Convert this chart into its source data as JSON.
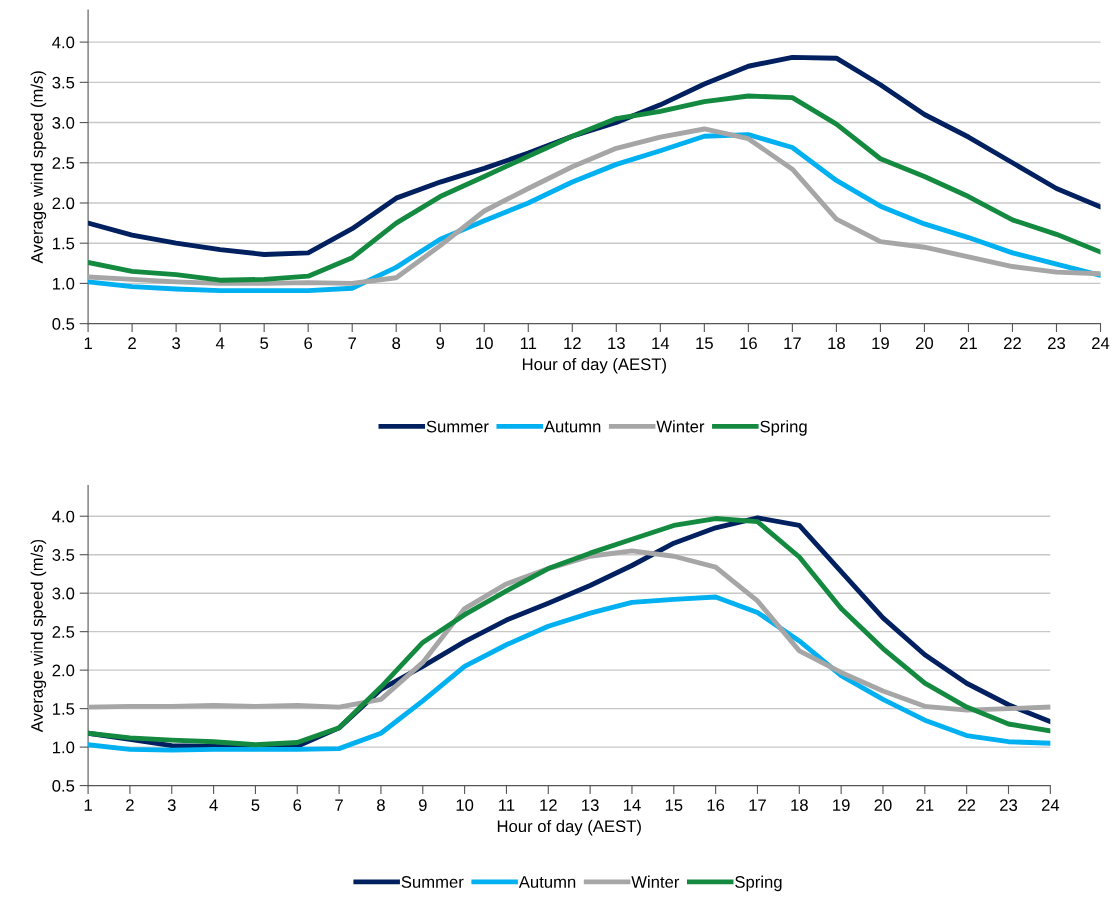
{
  "chart_data": [
    {
      "type": "line",
      "xlabel": "Hour of day (AEST)",
      "ylabel": "Average wind speed (m/s)",
      "x": [
        1,
        2,
        3,
        4,
        5,
        6,
        7,
        8,
        9,
        10,
        11,
        12,
        13,
        14,
        15,
        16,
        17,
        18,
        19,
        20,
        21,
        22,
        23,
        24
      ],
      "xlim": [
        1,
        24
      ],
      "xticks": [
        1,
        2,
        3,
        4,
        5,
        6,
        7,
        8,
        9,
        10,
        11,
        12,
        13,
        14,
        15,
        16,
        17,
        18,
        19,
        20,
        21,
        22,
        23,
        24
      ],
      "ylim": [
        0.5,
        4.4
      ],
      "yticks": [
        {
          "value": 0.5,
          "label": "0.5"
        },
        {
          "value": 1.0,
          "label": "1.0"
        },
        {
          "value": 1.5,
          "label": "1.5"
        },
        {
          "value": 2.0,
          "label": "2.0"
        },
        {
          "value": 2.5,
          "label": "2.5"
        },
        {
          "value": 3.0,
          "label": "3.0"
        },
        {
          "value": 3.5,
          "label": "3.5"
        },
        {
          "value": 4.0,
          "label": "4.0"
        }
      ],
      "grid": "y",
      "legend": "bottom",
      "marker": "none",
      "line_style": "solid",
      "series": [
        {
          "name": "Summer",
          "color": "#002060",
          "values": [
            1.75,
            1.6,
            1.5,
            1.42,
            1.36,
            1.38,
            1.68,
            2.06,
            2.26,
            2.43,
            2.62,
            2.83,
            3.0,
            3.22,
            3.48,
            3.7,
            3.81,
            3.8,
            3.47,
            3.1,
            2.82,
            2.5,
            2.18,
            1.95
          ]
        },
        {
          "name": "Autumn",
          "color": "#00b0f0",
          "values": [
            1.02,
            0.96,
            0.93,
            0.91,
            0.91,
            0.91,
            0.94,
            1.2,
            1.55,
            1.78,
            2.0,
            2.26,
            2.48,
            2.65,
            2.83,
            2.85,
            2.69,
            2.28,
            1.96,
            1.74,
            1.57,
            1.38,
            1.24,
            1.1
          ]
        },
        {
          "name": "Winter",
          "color": "#a6a6a6",
          "values": [
            1.08,
            1.05,
            1.02,
            1.0,
            1.0,
            1.01,
            1.0,
            1.07,
            1.47,
            1.9,
            2.18,
            2.45,
            2.68,
            2.82,
            2.92,
            2.8,
            2.42,
            1.8,
            1.52,
            1.45,
            1.33,
            1.21,
            1.14,
            1.12
          ]
        },
        {
          "name": "Spring",
          "color": "#138a3f",
          "values": [
            1.26,
            1.15,
            1.11,
            1.04,
            1.05,
            1.09,
            1.32,
            1.75,
            2.08,
            2.33,
            2.58,
            2.83,
            3.05,
            3.14,
            3.26,
            3.33,
            3.31,
            2.98,
            2.55,
            2.33,
            2.08,
            1.79,
            1.61,
            1.39
          ]
        }
      ]
    },
    {
      "type": "line",
      "xlabel": "Hour of day (AEST)",
      "ylabel": "Average wind speed (m/s)",
      "x": [
        1,
        2,
        3,
        4,
        5,
        6,
        7,
        8,
        9,
        10,
        11,
        12,
        13,
        14,
        15,
        16,
        17,
        18,
        19,
        20,
        21,
        22,
        23,
        24
      ],
      "xlim": [
        1,
        24
      ],
      "xticks": [
        1,
        2,
        3,
        4,
        5,
        6,
        7,
        8,
        9,
        10,
        11,
        12,
        13,
        14,
        15,
        16,
        17,
        18,
        19,
        20,
        21,
        22,
        23,
        24
      ],
      "ylim": [
        0.5,
        4.4
      ],
      "yticks": [
        {
          "value": 0.5,
          "label": "0.5"
        },
        {
          "value": 1.0,
          "label": "1.0"
        },
        {
          "value": 1.5,
          "label": "1.5"
        },
        {
          "value": 2.0,
          "label": "2.0"
        },
        {
          "value": 2.5,
          "label": "2.5"
        },
        {
          "value": 3.0,
          "label": "3.0"
        },
        {
          "value": 3.5,
          "label": "3.5"
        },
        {
          "value": 4.0,
          "label": "4.0"
        }
      ],
      "grid": "y",
      "legend": "bottom",
      "marker": "none",
      "line_style": "solid",
      "series": [
        {
          "name": "Summer",
          "color": "#002060",
          "values": [
            1.18,
            1.1,
            1.02,
            1.01,
            1.0,
            1.01,
            1.25,
            1.75,
            2.05,
            2.37,
            2.65,
            2.87,
            3.1,
            3.36,
            3.65,
            3.85,
            3.98,
            3.88,
            3.28,
            2.68,
            2.2,
            1.83,
            1.55,
            1.33
          ]
        },
        {
          "name": "Autumn",
          "color": "#00b0f0",
          "values": [
            1.03,
            0.97,
            0.96,
            0.97,
            0.97,
            0.97,
            0.98,
            1.18,
            1.6,
            2.05,
            2.33,
            2.57,
            2.74,
            2.88,
            2.92,
            2.95,
            2.75,
            2.38,
            1.93,
            1.62,
            1.35,
            1.15,
            1.07,
            1.05
          ]
        },
        {
          "name": "Winter",
          "color": "#a6a6a6",
          "values": [
            1.52,
            1.53,
            1.53,
            1.54,
            1.53,
            1.54,
            1.52,
            1.62,
            2.1,
            2.8,
            3.12,
            3.32,
            3.48,
            3.55,
            3.48,
            3.34,
            2.9,
            2.25,
            1.97,
            1.73,
            1.53,
            1.48,
            1.5,
            1.52
          ]
        },
        {
          "name": "Spring",
          "color": "#138a3f",
          "values": [
            1.18,
            1.12,
            1.09,
            1.07,
            1.03,
            1.06,
            1.25,
            1.78,
            2.36,
            2.72,
            3.03,
            3.32,
            3.52,
            3.7,
            3.88,
            3.97,
            3.93,
            3.47,
            2.8,
            2.28,
            1.83,
            1.52,
            1.3,
            1.21
          ]
        }
      ]
    }
  ]
}
